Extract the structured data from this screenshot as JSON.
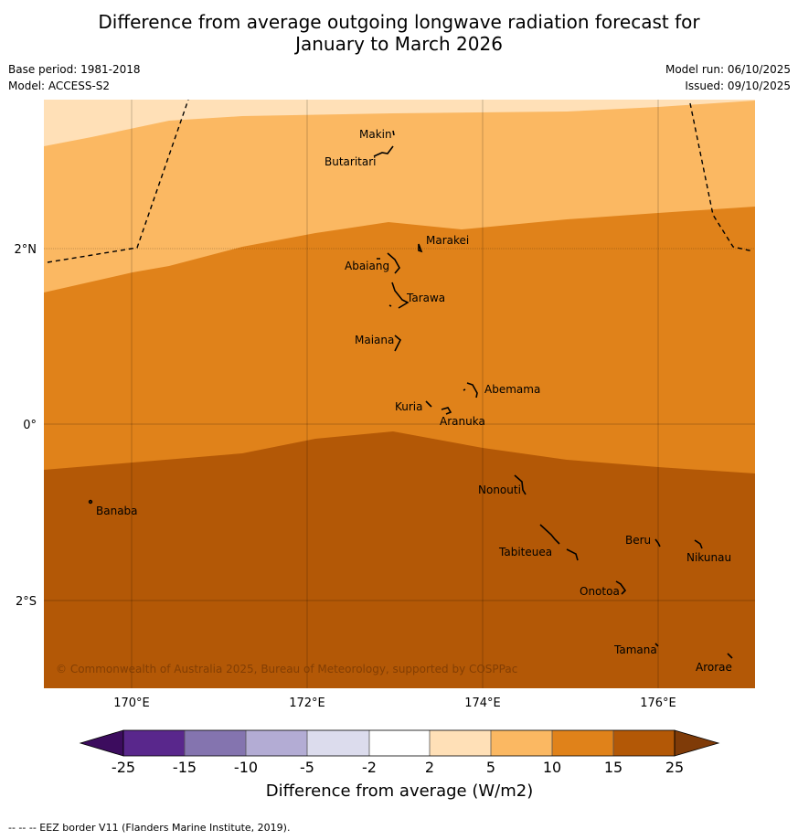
{
  "title_line1": "Difference from average outgoing longwave radiation forecast for",
  "title_line2": "January to March 2026",
  "base_period": "Base period: 1981-2018",
  "model": "Model: ACCESS-S2",
  "model_run": "Model run: 06/10/2025",
  "issued": "Issued: 09/10/2025",
  "copyright": "© Commonwealth of Australia 2025, Bureau of Meteorology, supported by COSPPac",
  "footer": "--  --  -- EEZ border V11 (Flanders Marine Institute, 2019).",
  "axes": {
    "lat_labels": [
      "2°N",
      "0°",
      "2°S"
    ],
    "lon_labels": [
      "170°E",
      "172°E",
      "174°E",
      "176°E"
    ]
  },
  "places": [
    "Makin",
    "Butaritari",
    "Marakei",
    "Abaiang",
    "Tarawa",
    "Maiana",
    "Abemama",
    "Kuria",
    "Aranuka",
    "Banaba",
    "Nonouti",
    "Beru",
    "Tabiteuea",
    "Nikunau",
    "Onotoa",
    "Tamana",
    "Arorae"
  ],
  "colorbar": {
    "title": "Difference from average (W/m2)",
    "ticks": [
      "-25",
      "-15",
      "-10",
      "-5",
      "-2",
      "2",
      "5",
      "10",
      "15",
      "25"
    ],
    "colors": [
      "#3c0c5e",
      "#59278c",
      "#8474af",
      "#b3acd4",
      "#dcdced",
      "#ffffff",
      "#ffe0b7",
      "#fbb862",
      "#e0821a",
      "#b35806",
      "#7f3b08"
    ]
  },
  "legend_color_classes": {
    "2_to_5": "#ffe0b7",
    "5_to_10": "#fbb862",
    "10_to_15": "#e0821a",
    "15_to_25": "#b35806"
  }
}
